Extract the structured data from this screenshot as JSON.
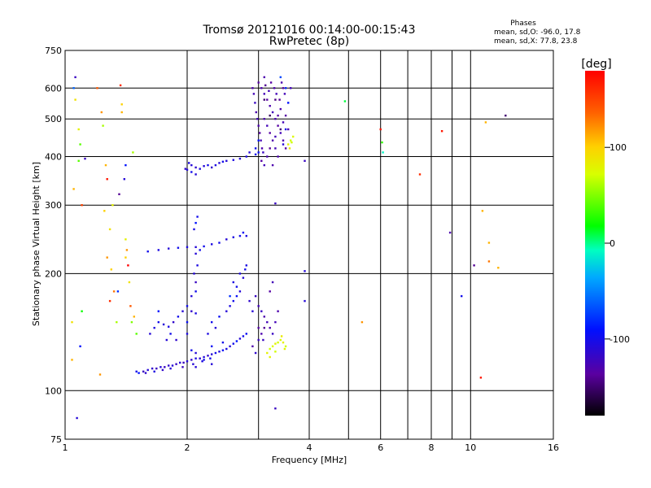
{
  "chart_data": {
    "type": "scatter",
    "title": "Tromsø 20121016 00:14:00-00:15:43",
    "subtitle": "RwPretec (8p)",
    "info": {
      "heading": "Phases",
      "line1": "mean, sd,O: -96.0, 17.8",
      "line2": "mean, sd,X:  77.8, 23.8"
    },
    "xlabel": "Frequency [MHz]",
    "ylabel": "Stationary phase Virtual Height [km]",
    "x_scale": "log",
    "y_scale": "log",
    "xlim": [
      1,
      16
    ],
    "ylim": [
      75,
      750
    ],
    "x_ticks": [
      1,
      2,
      4,
      6,
      8,
      10,
      16
    ],
    "x_tick_labels": [
      "1",
      "2",
      "4",
      "6",
      "8",
      "10",
      "16"
    ],
    "x_grid": [
      2,
      3,
      4,
      5,
      6,
      7,
      8,
      9,
      10
    ],
    "y_ticks": [
      75,
      100,
      200,
      300,
      400,
      500,
      600,
      750
    ],
    "y_tick_labels": [
      "75",
      "100",
      "200",
      "300",
      "400",
      "500",
      "600",
      "750"
    ],
    "y_grid": [
      100,
      200,
      300,
      400,
      500,
      600
    ],
    "grid": true,
    "colorbar": {
      "label": "[deg]",
      "range": [
        -180,
        180
      ],
      "ticks": [
        100,
        0,
        -100
      ],
      "tick_labels": [
        "100",
        "0",
        "-100"
      ]
    },
    "points": [
      [
        1.04,
        120,
        110
      ],
      [
        1.04,
        150,
        90
      ],
      [
        1.05,
        600,
        -60
      ],
      [
        1.06,
        640,
        -120
      ],
      [
        1.07,
        85,
        -110
      ],
      [
        1.09,
        130,
        -90
      ],
      [
        1.1,
        160,
        20
      ],
      [
        1.09,
        430,
        40
      ],
      [
        1.1,
        300,
        150
      ],
      [
        1.05,
        330,
        110
      ],
      [
        1.08,
        390,
        40
      ],
      [
        1.12,
        395,
        -120
      ],
      [
        1.08,
        470,
        80
      ],
      [
        1.06,
        560,
        90
      ],
      [
        1.2,
        600,
        140
      ],
      [
        1.22,
        110,
        120
      ],
      [
        1.26,
        380,
        110
      ],
      [
        1.27,
        350,
        170
      ],
      [
        1.24,
        480,
        60
      ],
      [
        1.23,
        520,
        120
      ],
      [
        1.25,
        290,
        100
      ],
      [
        1.27,
        220,
        120
      ],
      [
        1.29,
        260,
        90
      ],
      [
        1.31,
        300,
        80
      ],
      [
        1.3,
        205,
        100
      ],
      [
        1.32,
        180,
        130
      ],
      [
        1.29,
        170,
        160
      ],
      [
        1.34,
        150,
        60
      ],
      [
        1.37,
        610,
        160
      ],
      [
        1.38,
        520,
        110
      ],
      [
        1.38,
        545,
        100
      ],
      [
        1.41,
        245,
        80
      ],
      [
        1.42,
        230,
        120
      ],
      [
        1.41,
        220,
        100
      ],
      [
        1.43,
        210,
        180
      ],
      [
        1.44,
        190,
        90
      ],
      [
        1.45,
        165,
        140
      ],
      [
        1.46,
        150,
        50
      ],
      [
        1.48,
        155,
        110
      ],
      [
        1.5,
        140,
        40
      ],
      [
        1.4,
        350,
        -110
      ],
      [
        1.41,
        380,
        -90
      ],
      [
        1.47,
        410,
        60
      ],
      [
        1.35,
        180,
        -80
      ],
      [
        1.36,
        320,
        -140
      ],
      [
        1.56,
        112,
        -120
      ],
      [
        1.6,
        113,
        -110
      ],
      [
        1.64,
        114,
        -115
      ],
      [
        1.68,
        114,
        -120
      ],
      [
        1.72,
        115,
        -110
      ],
      [
        1.76,
        115,
        -120
      ],
      [
        1.8,
        116,
        -115
      ],
      [
        1.84,
        116,
        -110
      ],
      [
        1.88,
        117,
        -118
      ],
      [
        1.92,
        118,
        -112
      ],
      [
        1.96,
        118,
        -120
      ],
      [
        2.0,
        119,
        -110
      ],
      [
        2.05,
        120,
        -115
      ],
      [
        2.1,
        121,
        -105
      ],
      [
        2.15,
        121,
        -112
      ],
      [
        2.2,
        122,
        -108
      ],
      [
        2.25,
        123,
        -115
      ],
      [
        2.3,
        124,
        -110
      ],
      [
        2.35,
        125,
        -100
      ],
      [
        2.4,
        126,
        -108
      ],
      [
        2.45,
        127,
        -95
      ],
      [
        2.5,
        128,
        -105
      ],
      [
        2.55,
        130,
        -110
      ],
      [
        2.6,
        132,
        -100
      ],
      [
        2.65,
        134,
        -90
      ],
      [
        2.7,
        136,
        -110
      ],
      [
        2.75,
        138,
        -100
      ],
      [
        2.8,
        140,
        -95
      ],
      [
        1.5,
        112,
        -100
      ],
      [
        1.52,
        111,
        -90
      ],
      [
        1.58,
        111,
        -115
      ],
      [
        1.66,
        112,
        -105
      ],
      [
        1.74,
        113,
        -115
      ],
      [
        1.82,
        114,
        -110
      ],
      [
        1.95,
        115,
        -120
      ],
      [
        2.07,
        117,
        -110
      ],
      [
        2.18,
        119,
        -105
      ],
      [
        2.28,
        121,
        -100
      ],
      [
        2.05,
        127,
        -100
      ],
      [
        2.1,
        125,
        -110
      ],
      [
        2.3,
        130,
        -95
      ],
      [
        2.45,
        133,
        -100
      ],
      [
        1.62,
        140,
        -110
      ],
      [
        1.66,
        145,
        -105
      ],
      [
        1.7,
        150,
        -100
      ],
      [
        1.75,
        148,
        -110
      ],
      [
        1.8,
        146,
        -105
      ],
      [
        1.85,
        150,
        -115
      ],
      [
        1.9,
        155,
        -100
      ],
      [
        1.95,
        160,
        -110
      ],
      [
        2.0,
        165,
        -100
      ],
      [
        2.05,
        160,
        -115
      ],
      [
        2.1,
        158,
        -105
      ],
      [
        2.05,
        175,
        -110
      ],
      [
        2.1,
        180,
        -100
      ],
      [
        1.78,
        135,
        -110
      ],
      [
        1.82,
        140,
        -100
      ],
      [
        1.88,
        135,
        -115
      ],
      [
        2.0,
        140,
        -105
      ],
      [
        2.0,
        150,
        -95
      ],
      [
        1.7,
        160,
        -90
      ],
      [
        2.08,
        200,
        -110
      ],
      [
        2.1,
        190,
        -120
      ],
      [
        2.12,
        210,
        -105
      ],
      [
        2.25,
        140,
        -105
      ],
      [
        2.3,
        150,
        -100
      ],
      [
        2.35,
        145,
        -110
      ],
      [
        2.4,
        155,
        -95
      ],
      [
        2.5,
        160,
        -110
      ],
      [
        2.55,
        165,
        -105
      ],
      [
        2.6,
        170,
        -100
      ],
      [
        2.65,
        175,
        -95
      ],
      [
        2.7,
        180,
        -110
      ],
      [
        2.6,
        190,
        -105
      ],
      [
        2.65,
        185,
        -100
      ],
      [
        2.55,
        175,
        -80
      ],
      [
        2.7,
        200,
        -105
      ],
      [
        2.75,
        195,
        -110
      ],
      [
        2.78,
        205,
        -100
      ],
      [
        2.8,
        210,
        -105
      ],
      [
        2.85,
        170,
        -115
      ],
      [
        2.9,
        160,
        -110
      ],
      [
        2.95,
        175,
        -120
      ],
      [
        3.0,
        165,
        -125
      ],
      [
        3.05,
        160,
        -120
      ],
      [
        3.1,
        155,
        -130
      ],
      [
        3.15,
        150,
        -125
      ],
      [
        3.2,
        145,
        -130
      ],
      [
        3.25,
        140,
        -120
      ],
      [
        3.3,
        150,
        -125
      ],
      [
        3.35,
        160,
        -130
      ],
      [
        3.2,
        180,
        -135
      ],
      [
        3.25,
        190,
        -125
      ],
      [
        3.0,
        145,
        -135
      ],
      [
        3.05,
        140,
        -130
      ],
      [
        3.08,
        135,
        -120
      ],
      [
        3.1,
        145,
        -140
      ],
      [
        3.0,
        135,
        -120
      ],
      [
        2.9,
        130,
        -130
      ],
      [
        2.95,
        125,
        -115
      ],
      [
        2.1,
        115,
        -110
      ],
      [
        2.2,
        120,
        -100
      ],
      [
        2.3,
        117,
        -110
      ],
      [
        3.15,
        125,
        80
      ],
      [
        3.2,
        128,
        70
      ],
      [
        3.25,
        130,
        75
      ],
      [
        3.3,
        132,
        80
      ],
      [
        3.35,
        133,
        70
      ],
      [
        3.4,
        135,
        75
      ],
      [
        3.45,
        133,
        80
      ],
      [
        3.5,
        130,
        70
      ],
      [
        3.42,
        138,
        85
      ],
      [
        3.48,
        128,
        78
      ],
      [
        3.3,
        126,
        70
      ],
      [
        3.2,
        122,
        80
      ],
      [
        1.6,
        228,
        -100
      ],
      [
        1.7,
        230,
        -105
      ],
      [
        1.8,
        232,
        -110
      ],
      [
        1.9,
        233,
        -100
      ],
      [
        2.0,
        234,
        -105
      ],
      [
        2.1,
        234,
        -110
      ],
      [
        2.2,
        235,
        -100
      ],
      [
        2.3,
        238,
        -105
      ],
      [
        2.4,
        240,
        -100
      ],
      [
        2.5,
        245,
        -110
      ],
      [
        2.6,
        248,
        -105
      ],
      [
        2.7,
        250,
        -100
      ],
      [
        2.75,
        255,
        -95
      ],
      [
        2.8,
        250,
        -105
      ],
      [
        2.1,
        225,
        -110
      ],
      [
        2.15,
        230,
        -100
      ],
      [
        2.1,
        270,
        -90
      ],
      [
        2.12,
        280,
        -100
      ],
      [
        2.08,
        260,
        -105
      ],
      [
        2.05,
        380,
        -110
      ],
      [
        2.1,
        375,
        -115
      ],
      [
        2.15,
        372,
        -105
      ],
      [
        2.2,
        378,
        -110
      ],
      [
        2.25,
        380,
        -100
      ],
      [
        2.3,
        375,
        -115
      ],
      [
        2.35,
        380,
        -105
      ],
      [
        2.4,
        385,
        -110
      ],
      [
        2.45,
        388,
        -100
      ],
      [
        2.5,
        390,
        -110
      ],
      [
        2.6,
        392,
        -105
      ],
      [
        2.7,
        395,
        -110
      ],
      [
        2.8,
        400,
        -105
      ],
      [
        2.95,
        405,
        -100
      ],
      [
        3.0,
        410,
        -95
      ],
      [
        2.0,
        370,
        -110
      ],
      [
        2.05,
        365,
        -100
      ],
      [
        2.1,
        360,
        -110
      ],
      [
        1.98,
        372,
        -115
      ],
      [
        2.02,
        385,
        -105
      ],
      [
        2.9,
        600,
        -130
      ],
      [
        2.92,
        580,
        -125
      ],
      [
        2.94,
        550,
        -120
      ],
      [
        2.96,
        520,
        -130
      ],
      [
        2.98,
        500,
        -125
      ],
      [
        3.0,
        480,
        -130
      ],
      [
        3.02,
        460,
        -135
      ],
      [
        3.04,
        440,
        -125
      ],
      [
        3.06,
        420,
        -130
      ],
      [
        3.08,
        410,
        -120
      ],
      [
        3.0,
        620,
        -135
      ],
      [
        3.05,
        600,
        -130
      ],
      [
        3.1,
        580,
        -125
      ],
      [
        3.15,
        560,
        -135
      ],
      [
        3.2,
        540,
        -130
      ],
      [
        3.25,
        520,
        -125
      ],
      [
        3.3,
        500,
        -130
      ],
      [
        3.35,
        480,
        -135
      ],
      [
        3.4,
        460,
        -125
      ],
      [
        3.45,
        440,
        -130
      ],
      [
        3.5,
        420,
        -135
      ],
      [
        3.1,
        640,
        -130
      ],
      [
        3.12,
        610,
        -140
      ],
      [
        3.18,
        590,
        -125
      ],
      [
        3.22,
        620,
        -135
      ],
      [
        3.28,
        600,
        -130
      ],
      [
        3.32,
        580,
        -125
      ],
      [
        3.38,
        560,
        -140
      ],
      [
        3.42,
        620,
        -130
      ],
      [
        3.45,
        600,
        -135
      ],
      [
        3.48,
        580,
        -125
      ],
      [
        3.1,
        500,
        -130
      ],
      [
        3.15,
        480,
        -125
      ],
      [
        3.2,
        460,
        -135
      ],
      [
        3.25,
        440,
        -130
      ],
      [
        3.3,
        420,
        -125
      ],
      [
        3.35,
        400,
        -130
      ],
      [
        3.05,
        390,
        -135
      ],
      [
        3.1,
        380,
        -125
      ],
      [
        3.15,
        400,
        -130
      ],
      [
        3.2,
        420,
        -140
      ],
      [
        3.25,
        380,
        -130
      ],
      [
        3.3,
        450,
        -125
      ],
      [
        3.35,
        510,
        -135
      ],
      [
        3.4,
        530,
        -130
      ],
      [
        3.45,
        490,
        -125
      ],
      [
        3.5,
        510,
        -135
      ],
      [
        3.55,
        470,
        -130
      ],
      [
        3.6,
        600,
        -125
      ],
      [
        3.4,
        470,
        -150
      ],
      [
        3.2,
        510,
        -155
      ],
      [
        3.1,
        560,
        -150
      ],
      [
        3.3,
        560,
        -145
      ],
      [
        3.55,
        430,
        80
      ],
      [
        3.6,
        440,
        70
      ],
      [
        3.65,
        450,
        75
      ],
      [
        3.58,
        420,
        85
      ],
      [
        3.62,
        435,
        70
      ],
      [
        3.45,
        430,
        -110
      ],
      [
        3.5,
        470,
        -100
      ],
      [
        3.55,
        550,
        -90
      ],
      [
        3.4,
        640,
        -70
      ],
      [
        3.5,
        600,
        -80
      ],
      [
        2.95,
        420,
        -100
      ],
      [
        3.0,
        440,
        -90
      ],
      [
        2.85,
        410,
        -110
      ],
      [
        3.3,
        303,
        -120
      ],
      [
        3.3,
        90,
        -120
      ],
      [
        3.9,
        390,
        -120
      ],
      [
        3.9,
        203,
        -110
      ],
      [
        3.9,
        170,
        -110
      ],
      [
        4.9,
        555,
        10
      ],
      [
        5.4,
        150,
        120
      ],
      [
        6.0,
        470,
        170
      ],
      [
        6.05,
        435,
        30
      ],
      [
        6.08,
        410,
        -10
      ],
      [
        7.5,
        360,
        160
      ],
      [
        8.5,
        465,
        170
      ],
      [
        8.9,
        255,
        -130
      ],
      [
        9.5,
        175,
        -100
      ],
      [
        10.2,
        210,
        -140
      ],
      [
        10.6,
        108,
        170
      ],
      [
        10.7,
        290,
        110
      ],
      [
        10.9,
        490,
        110
      ],
      [
        11.1,
        240,
        110
      ],
      [
        11.1,
        215,
        130
      ],
      [
        11.7,
        207,
        110
      ],
      [
        12.2,
        510,
        -150
      ]
    ]
  }
}
